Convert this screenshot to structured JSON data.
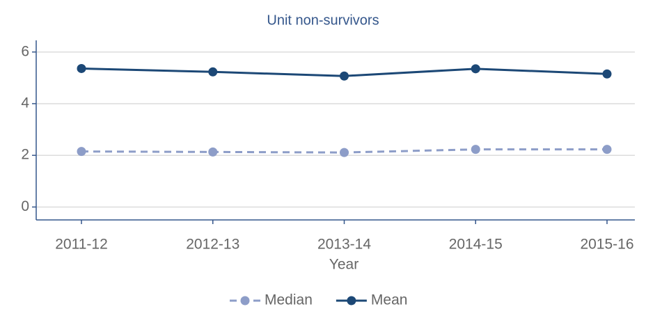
{
  "chart_data": {
    "type": "line",
    "title": "Unit non-survivors",
    "x_label": "Year",
    "categories": [
      "2011-12",
      "2012-13",
      "2013-14",
      "2014-15",
      "2015-16"
    ],
    "series": [
      {
        "name": "Median",
        "color": "#8d9dc8",
        "dashed": true,
        "values": [
          2.15,
          2.13,
          2.11,
          2.23,
          2.23
        ]
      },
      {
        "name": "Mean",
        "color": "#1c4876",
        "dashed": false,
        "values": [
          5.36,
          5.23,
          5.07,
          5.35,
          5.15
        ]
      }
    ],
    "ylim": [
      -0.5,
      6.45
    ],
    "yticks": [
      0,
      2,
      4,
      6
    ],
    "grid": true,
    "legend": "bottom"
  }
}
